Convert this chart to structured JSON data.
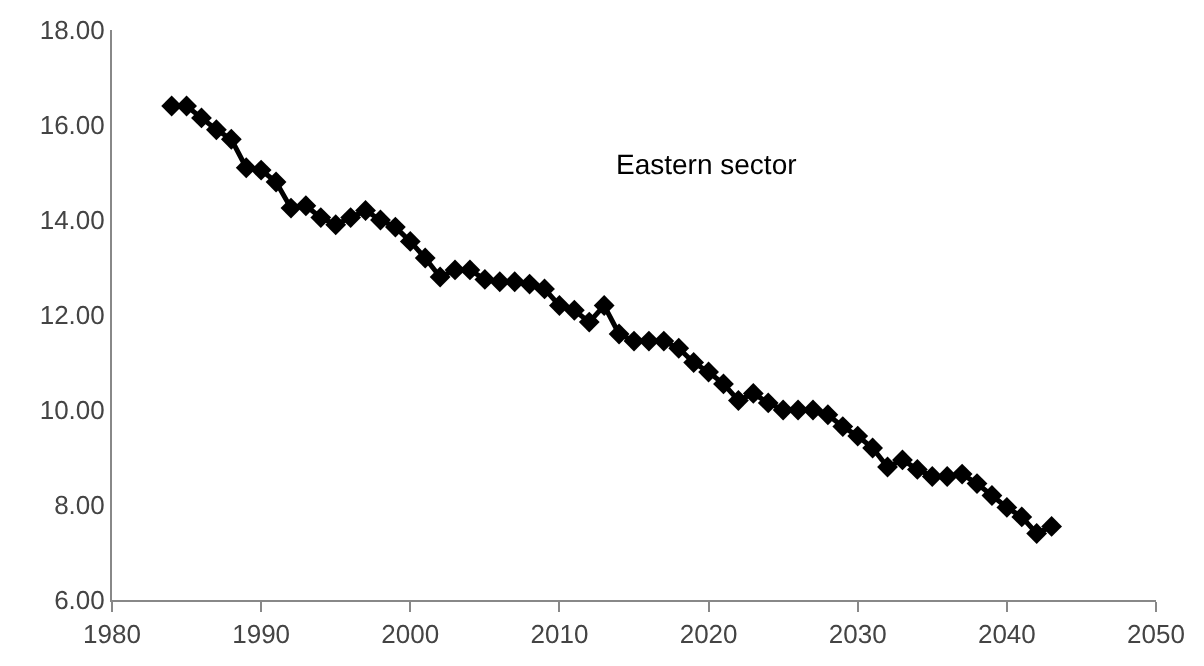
{
  "chart_data": {
    "type": "line",
    "x": [
      1984,
      1985,
      1986,
      1987,
      1988,
      1989,
      1990,
      1991,
      1992,
      1993,
      1994,
      1995,
      1996,
      1997,
      1998,
      1999,
      2000,
      2001,
      2002,
      2003,
      2004,
      2005,
      2006,
      2007,
      2008,
      2009,
      2010,
      2011,
      2012,
      2013,
      2014,
      2015,
      2016,
      2017,
      2018,
      2019,
      2020,
      2021,
      2022,
      2023,
      2024,
      2025,
      2026,
      2027,
      2028,
      2029,
      2030,
      2031,
      2032,
      2033,
      2034,
      2035,
      2036,
      2037,
      2038,
      2039,
      2040,
      2041,
      2042,
      2043
    ],
    "series": [
      {
        "color": "#000000",
        "values": [
          16.4,
          16.4,
          16.15,
          15.9,
          15.7,
          15.1,
          15.05,
          14.8,
          14.25,
          14.3,
          14.05,
          13.9,
          14.05,
          14.2,
          14.0,
          13.85,
          13.55,
          13.2,
          12.8,
          12.95,
          12.95,
          12.75,
          12.7,
          12.7,
          12.65,
          12.55,
          12.2,
          12.1,
          11.85,
          12.2,
          11.6,
          11.45,
          11.45,
          11.45,
          11.3,
          11.0,
          10.8,
          10.55,
          10.2,
          10.35,
          10.15,
          10.0,
          10.0,
          10.0,
          9.9,
          9.65,
          9.45,
          9.2,
          8.8,
          8.95,
          8.75,
          8.6,
          8.6,
          8.65,
          8.45,
          8.2,
          7.95,
          7.75,
          7.4,
          7.55
        ]
      }
    ],
    "annotations": [
      "Eastern sector"
    ],
    "xlim": [
      1980,
      2050
    ],
    "xticks": [
      1980,
      1990,
      2000,
      2010,
      2020,
      2030,
      2040,
      2050
    ],
    "ylim": [
      6,
      18
    ],
    "yticks": [
      {
        "value": 6,
        "label": "6.00"
      },
      {
        "value": 8,
        "label": "8.00"
      },
      {
        "value": 10,
        "label": "10.00"
      },
      {
        "value": 12,
        "label": "12.00"
      },
      {
        "value": 14,
        "label": "14.00"
      },
      {
        "value": 16,
        "label": "16.00"
      },
      {
        "value": 18,
        "label": "18.00"
      }
    ],
    "marker": "diamond",
    "line_style": "solid"
  }
}
